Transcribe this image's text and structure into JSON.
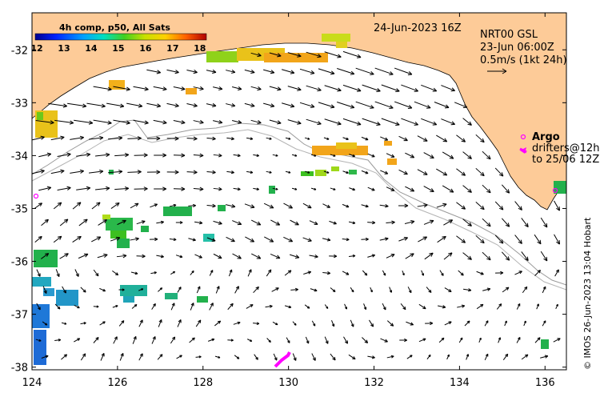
{
  "map": {
    "date_title": "24-Jun-2023 16Z",
    "product": "NRT00 GSL",
    "product_time": "23-Jun 06:00Z",
    "scale_text": "0.5m/s (1kt 24h)",
    "legend_argo": "Argo",
    "legend_drifters": "drifters@12h",
    "legend_drifters_to": "to 25/06 12Z",
    "credit": "© IMOS 26-Jun-2023 13:04 Hobart",
    "colorbar_title": "4h comp, p50, All Sats",
    "colorbar_labels": [
      "12",
      "13",
      "14",
      "15",
      "16",
      "17",
      "18"
    ],
    "lon_labels": [
      "124",
      "126",
      "128",
      "130",
      "132",
      "134",
      "136"
    ],
    "lat_labels": [
      "-32",
      "-33",
      "-34",
      "-35",
      "-36",
      "-37",
      "-38"
    ],
    "lon_range": [
      124,
      136.5
    ],
    "lat_range": [
      -38.05,
      -31.3
    ],
    "colors": {
      "land": "#FDCB98",
      "ocean": "#FFFFFF",
      "argo": "#FF00FF",
      "depth_contour": "#9A9A9A",
      "sst_cool": "#1E6BD6",
      "sst_mid": "#22B14C",
      "sst_warm": "#F2A51A"
    }
  }
}
